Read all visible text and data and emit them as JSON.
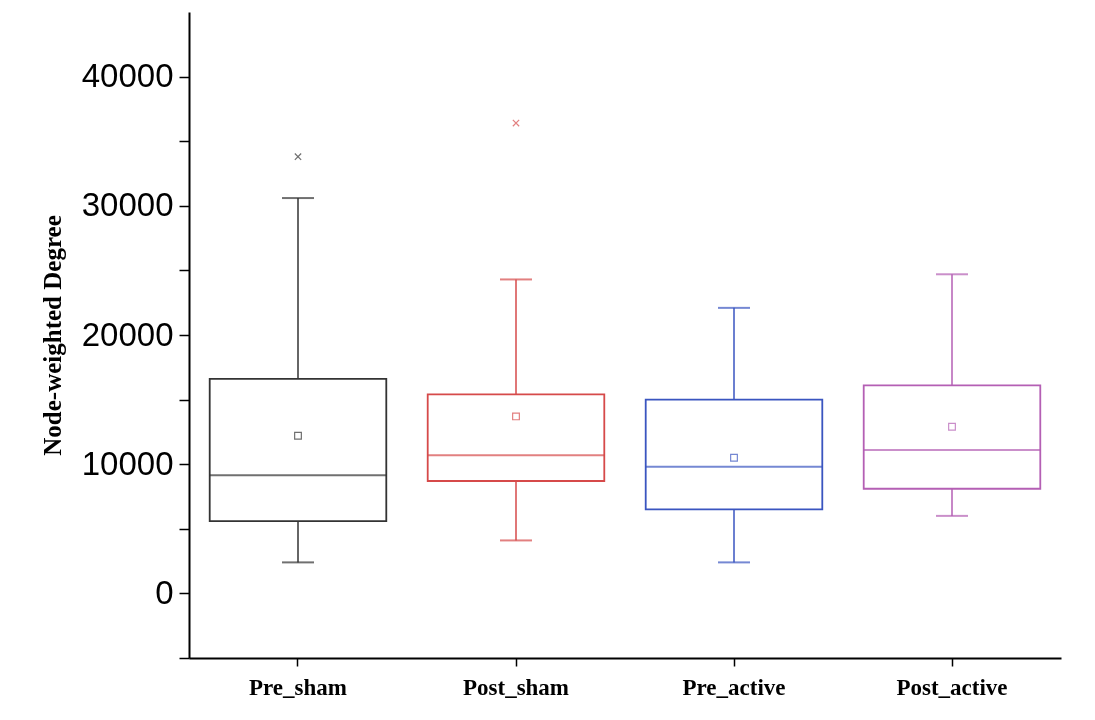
{
  "chart_data": {
    "type": "box",
    "ylabel": "Node-weighted Degree",
    "categories": [
      "Pre_sham",
      "Post_sham",
      "Pre_active",
      "Post_active"
    ],
    "colors": [
      "#333333",
      "#d64a4a",
      "#3a55c0",
      "#b45fb4"
    ],
    "boxes": [
      {
        "low": 2400,
        "q1": 5600,
        "median": 9150,
        "q3": 16600,
        "high": 30600,
        "mean": 12200,
        "outliers": [
          33800
        ]
      },
      {
        "low": 4100,
        "q1": 8700,
        "median": 10700,
        "q3": 15400,
        "high": 24300,
        "mean": 13700,
        "outliers": [
          36400
        ]
      },
      {
        "low": 2400,
        "q1": 6500,
        "median": 9800,
        "q3": 15000,
        "high": 22100,
        "mean": 10500
      },
      {
        "low": 6000,
        "q1": 8100,
        "median": 11100,
        "q3": 16100,
        "high": 24700,
        "mean": 12900
      }
    ],
    "ylim": [
      -5000,
      45000
    ],
    "yticks": [
      {
        "value": -5000,
        "label": null
      },
      0,
      {
        "value": 5000,
        "label": null
      },
      10000,
      {
        "value": 15000,
        "label": null
      },
      20000,
      {
        "value": 25000,
        "label": null
      },
      30000,
      {
        "value": 35000,
        "label": null
      },
      40000
    ],
    "grid": false
  }
}
